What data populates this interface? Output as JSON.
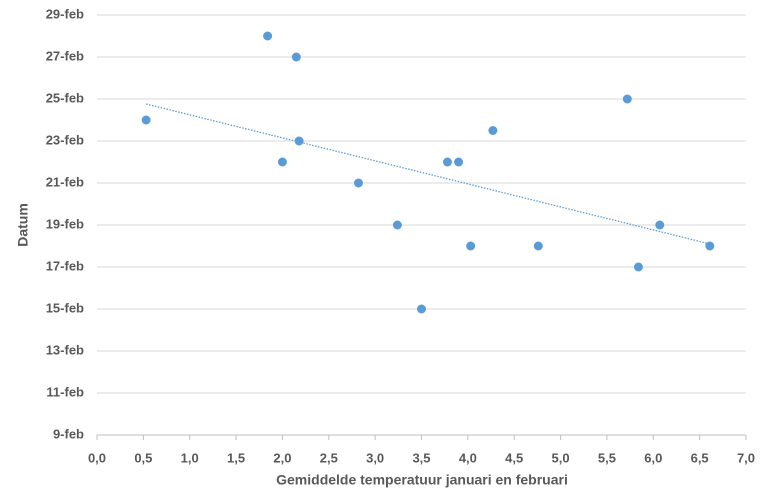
{
  "chart_data": {
    "type": "scatter",
    "x_label": "Gemiddelde temperatuur januari en februari",
    "y_label": "Datum",
    "x": [
      0.53,
      1.84,
      2.15,
      2.0,
      2.18,
      2.82,
      3.24,
      3.5,
      3.78,
      3.9,
      4.03,
      4.27,
      4.76,
      5.72,
      5.84,
      6.07,
      6.61
    ],
    "values": [
      24,
      28,
      27,
      22,
      23,
      21,
      19,
      15,
      22,
      22,
      18,
      23.5,
      18,
      25,
      17,
      19,
      18
    ],
    "color": "#5b9bd5",
    "trendline": "linear",
    "xlim": [
      0,
      7
    ],
    "xticks": [
      {
        "value": 0,
        "label": "0,0"
      },
      {
        "value": 0.5,
        "label": "0,5"
      },
      {
        "value": 1,
        "label": "1,0"
      },
      {
        "value": 1.5,
        "label": "1,5"
      },
      {
        "value": 2,
        "label": "2,0"
      },
      {
        "value": 2.5,
        "label": "2,5"
      },
      {
        "value": 3,
        "label": "3,0"
      },
      {
        "value": 3.5,
        "label": "3,5"
      },
      {
        "value": 4,
        "label": "4,0"
      },
      {
        "value": 4.5,
        "label": "4,5"
      },
      {
        "value": 5,
        "label": "5,0"
      },
      {
        "value": 5.5,
        "label": "5,5"
      },
      {
        "value": 6,
        "label": "6,0"
      },
      {
        "value": 6.5,
        "label": "6,5"
      },
      {
        "value": 7,
        "label": "7,0"
      }
    ],
    "ylim": [
      9,
      29
    ],
    "yticks": [
      {
        "value": 9,
        "label": "9-feb"
      },
      {
        "value": 11,
        "label": "11-feb"
      },
      {
        "value": 13,
        "label": "13-feb"
      },
      {
        "value": 15,
        "label": "15-feb"
      },
      {
        "value": 17,
        "label": "17-feb"
      },
      {
        "value": 19,
        "label": "19-feb"
      },
      {
        "value": 21,
        "label": "21-feb"
      },
      {
        "value": 23,
        "label": "23-feb"
      },
      {
        "value": 25,
        "label": "25-feb"
      },
      {
        "value": 27,
        "label": "27-feb"
      },
      {
        "value": 29,
        "label": "29-feb"
      }
    ],
    "grid": true
  }
}
